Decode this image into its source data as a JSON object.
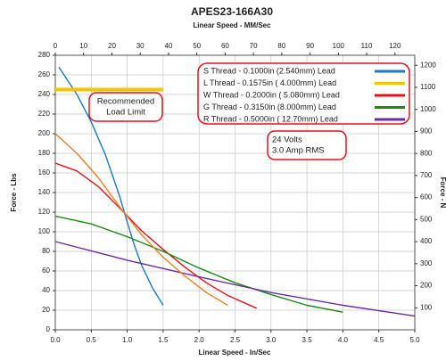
{
  "chart_data": {
    "type": "line",
    "title": "APES23-166A30",
    "x2_label": "Linear Speed - MM/Sec",
    "x_label": "Linear Speed - In/Sec",
    "y_label": "Force - Lbs",
    "y2_label": "Force - N",
    "xlim": [
      0,
      5
    ],
    "ylim": [
      0,
      280
    ],
    "x2lim": [
      0,
      127
    ],
    "y2lim": [
      0,
      1245.5
    ],
    "xticks": [
      {
        "value": 0,
        "label": "0.0"
      },
      0.5,
      {
        "value": 1,
        "label": "1.0"
      },
      1.5,
      {
        "value": 2,
        "label": "2.0"
      },
      2.5,
      {
        "value": 3,
        "label": "3.0"
      },
      3.5,
      {
        "value": 4,
        "label": "4.0"
      },
      4.5,
      {
        "value": 5,
        "label": "5.0"
      }
    ],
    "yticks": [
      0,
      20,
      40,
      60,
      80,
      100,
      120,
      140,
      160,
      180,
      200,
      220,
      240,
      260,
      280
    ],
    "x2ticks": [
      0,
      10,
      20,
      30,
      40,
      50,
      60,
      70,
      80,
      90,
      100,
      110,
      120
    ],
    "y2ticks": [
      100,
      200,
      300,
      400,
      500,
      600,
      700,
      800,
      900,
      1000,
      1100,
      1200
    ],
    "grid": true,
    "series": [
      {
        "name": "S Thread - 0.1000in (2.540mm) Lead",
        "color": "#1f78c8",
        "x": [
          0.05,
          0.3,
          0.5,
          0.7,
          0.9,
          1.0,
          1.1,
          1.2,
          1.35,
          1.5
        ],
        "y": [
          268,
          240,
          212,
          178,
          135,
          110,
          86,
          66,
          43,
          25
        ]
      },
      {
        "name": "L Thread - 0.1575in ( 4.000mm) Lead",
        "color": "#f5c400",
        "x": [
          0,
          1.5
        ],
        "y": [
          245,
          245
        ]
      },
      {
        "name": "W Thread - 0.2000in ( 5.080mm) Lead",
        "color": "#e8101a",
        "x": [
          0,
          0.3,
          0.6,
          0.9,
          1.2,
          1.5,
          1.8,
          2.1,
          2.4,
          2.8
        ],
        "y": [
          170,
          162,
          146,
          124,
          101,
          82,
          64,
          48,
          35,
          22
        ]
      },
      {
        "name": "G Thread - 0.3150in (8.000mm) Lead",
        "color": "#1a8a1a",
        "x": [
          0,
          0.5,
          1.0,
          1.5,
          2.0,
          2.5,
          3.0,
          3.5,
          4.0
        ],
        "y": [
          116,
          108,
          95,
          80,
          63,
          48,
          36,
          25,
          18
        ]
      },
      {
        "name": "R Thread - 0.5000in ( 12.70mm) Lead",
        "color": "#6a2ea0",
        "x": [
          0,
          1.0,
          2.0,
          3.0,
          4.0,
          5.0
        ],
        "y": [
          90,
          71,
          54,
          38,
          25,
          14
        ]
      },
      {
        "color": "#ee7d22",
        "x": [
          0,
          0.3,
          0.6,
          0.9,
          1.2,
          1.5,
          1.8,
          2.1,
          2.4
        ],
        "y": [
          200,
          180,
          155,
          125,
          97,
          74,
          55,
          38,
          25
        ]
      }
    ],
    "annotations": [
      {
        "lines": [
          "Recommended",
          "Load Limit"
        ]
      },
      {
        "lines": [
          "24 Volts",
          "3.0 Amp RMS"
        ]
      }
    ]
  }
}
